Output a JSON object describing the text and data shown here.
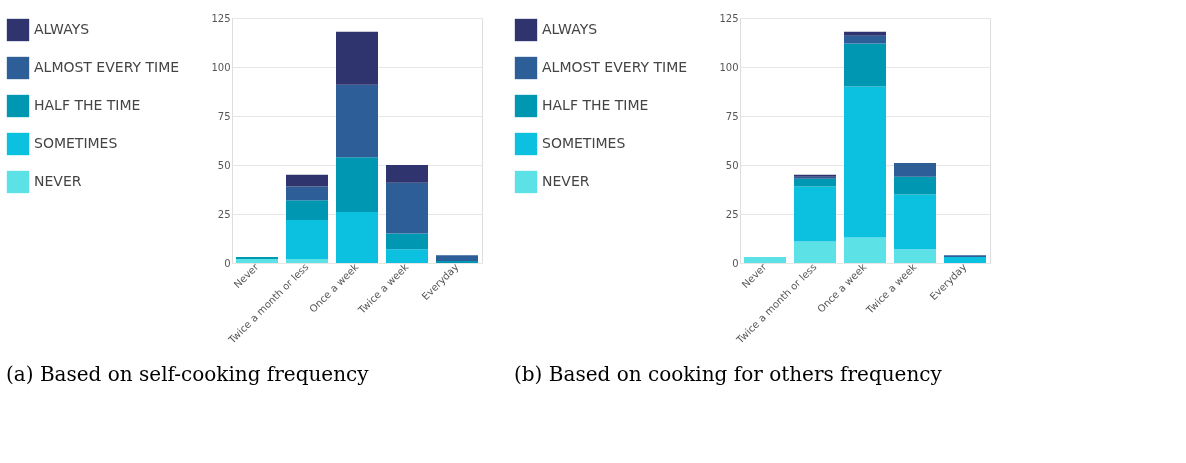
{
  "chart_data": [
    {
      "type": "bar",
      "stacked": true,
      "categories": [
        "Never",
        "Twice a month or less",
        "Once a week",
        "Twice a week",
        "Everyday"
      ],
      "series": [
        {
          "name": "NEVER",
          "color": "#5ce1e6",
          "values": [
            2,
            2,
            0,
            0,
            0
          ]
        },
        {
          "name": "SOMETIMES",
          "color": "#0cc0df",
          "values": [
            0,
            20,
            26,
            7,
            0
          ]
        },
        {
          "name": "HALF THE TIME",
          "color": "#0097b2",
          "values": [
            1,
            10,
            28,
            8,
            1
          ]
        },
        {
          "name": "ALMOST EVERY TIME",
          "color": "#2e5e98",
          "values": [
            0,
            7,
            37,
            26,
            3
          ]
        },
        {
          "name": "ALWAYS",
          "color": "#2f346e",
          "values": [
            0,
            6,
            27,
            9,
            0
          ]
        }
      ],
      "ylim": [
        0,
        125
      ],
      "yticks": [
        0,
        25,
        50,
        75,
        100,
        125
      ],
      "grid": "y",
      "legend": "left",
      "annotations": [
        "(a) Based on self-cooking frequency"
      ]
    },
    {
      "type": "bar",
      "stacked": true,
      "categories": [
        "Never",
        "Twice a month or less",
        "Once a week",
        "Twice a week",
        "Everyday"
      ],
      "series": [
        {
          "name": "NEVER",
          "color": "#5ce1e6",
          "values": [
            3,
            11,
            13,
            7,
            0
          ]
        },
        {
          "name": "SOMETIMES",
          "color": "#0cc0df",
          "values": [
            0,
            28,
            77,
            28,
            3
          ]
        },
        {
          "name": "HALF THE TIME",
          "color": "#0097b2",
          "values": [
            0,
            4,
            22,
            9,
            0
          ]
        },
        {
          "name": "ALMOST EVERY TIME",
          "color": "#2e5e98",
          "values": [
            0,
            1,
            4,
            7,
            1
          ]
        },
        {
          "name": "ALWAYS",
          "color": "#2f346e",
          "values": [
            0,
            1,
            2,
            0,
            0
          ]
        }
      ],
      "ylim": [
        0,
        125
      ],
      "yticks": [
        0,
        25,
        50,
        75,
        100,
        125
      ],
      "grid": "y",
      "legend": "left",
      "annotations": [
        "(b) Based on cooking for others frequency"
      ]
    }
  ]
}
